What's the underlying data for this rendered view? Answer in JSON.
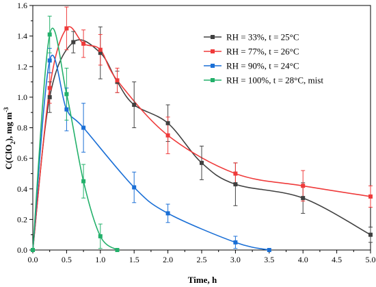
{
  "chart_data": {
    "type": "line",
    "xlabel": "Time, h",
    "ylabel_main": "C(ClO",
    "ylabel_sub": "2",
    "ylabel_tail": "), mg m",
    "ylabel_sup": "-3",
    "xlim": [
      0,
      5
    ],
    "ylim": [
      0,
      1.6
    ],
    "x_ticks": [
      "0.0",
      "0.5",
      "1.0",
      "1.5",
      "2.0",
      "2.5",
      "3.0",
      "3.5",
      "4.0",
      "4.5",
      "5.0"
    ],
    "y_ticks": [
      "0.0",
      "0.2",
      "0.4",
      "0.6",
      "0.8",
      "1.0",
      "1.2",
      "1.4",
      "1.6"
    ],
    "grid": false,
    "legend_position": "top-right",
    "series": [
      {
        "name": "RH = 33%, t = 25°C",
        "color": "#404040",
        "x": [
          0,
          0.25,
          0.6,
          1.0,
          1.25,
          1.5,
          2.0,
          2.5,
          3.0,
          4.0,
          5.0
        ],
        "y": [
          0,
          1.0,
          1.36,
          1.29,
          1.1,
          0.95,
          0.83,
          0.57,
          0.43,
          0.34,
          0.1
        ],
        "err": [
          0,
          0.1,
          0.07,
          0.17,
          0.07,
          0.15,
          0.12,
          0.11,
          0.14,
          0.1,
          0.05
        ]
      },
      {
        "name": "RH = 77%, t = 26°C",
        "color": "#ef3a3a",
        "x": [
          0,
          0.25,
          0.5,
          0.75,
          1.0,
          1.25,
          2.0,
          3.0,
          4.0,
          5.0
        ],
        "y": [
          0,
          1.06,
          1.45,
          1.35,
          1.31,
          1.11,
          0.75,
          0.5,
          0.42,
          0.35
        ],
        "err": [
          0,
          0.1,
          0.14,
          0.09,
          0.1,
          0.08,
          0.12,
          0.07,
          0.1,
          0.07
        ]
      },
      {
        "name": "RH = 90%, t = 24°C",
        "color": "#1a6fd6",
        "x": [
          0,
          0.25,
          0.5,
          0.75,
          1.5,
          2.0,
          3.0,
          3.5
        ],
        "y": [
          0,
          1.24,
          0.92,
          0.8,
          0.41,
          0.24,
          0.05,
          0.0
        ],
        "err": [
          0,
          0.08,
          0.14,
          0.16,
          0.1,
          0.06,
          0.04,
          0.0
        ]
      },
      {
        "name": "RH = 100%, t = 28°C, mist",
        "color": "#22b06a",
        "x": [
          0,
          0.25,
          0.5,
          0.75,
          1.0,
          1.25
        ],
        "y": [
          0,
          1.41,
          1.02,
          0.45,
          0.09,
          0.0
        ],
        "err": [
          0,
          0.12,
          0.17,
          0.11,
          0.08,
          0.0
        ]
      }
    ]
  }
}
